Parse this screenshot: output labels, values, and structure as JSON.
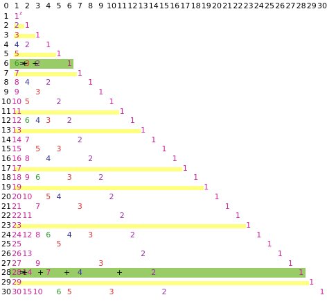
{
  "header": [
    "0",
    "1",
    "2",
    "3",
    "4",
    "5",
    "6",
    "7",
    "8",
    "9",
    "10",
    "11",
    "12",
    "13",
    "14",
    "15",
    "16",
    "17",
    "18",
    "19",
    "20",
    "21",
    "22",
    "23",
    "24",
    "25",
    "26",
    "27",
    "28",
    "29",
    "30"
  ],
  "rows": [
    "1",
    "2",
    "3",
    "4",
    "5",
    "6",
    "7",
    "8",
    "9",
    "10",
    "11",
    "12",
    "13",
    "14",
    "15",
    "16",
    "17",
    "18",
    "19",
    "20",
    "21",
    "22",
    "23",
    "24",
    "25",
    "26",
    "27",
    "28",
    "29",
    "30"
  ],
  "perfect_numbers": [
    6,
    28
  ],
  "operators": {
    "plus": "+",
    "equals": "="
  },
  "superscript_label": "z",
  "colors": {
    "bar": "#ffff80",
    "perfect_band": "#99cc66",
    "plus_sign": "#000000",
    "divisor_1": "#cc2299",
    "divisor_2": "#9933aa",
    "divisor_3": "#dd3333",
    "divisor_4": "#333399",
    "divisor_5": "#dd3333",
    "divisor_6": "#339933",
    "divisor_7": "#cc2299",
    "divisor_other": "#cc2299"
  }
}
